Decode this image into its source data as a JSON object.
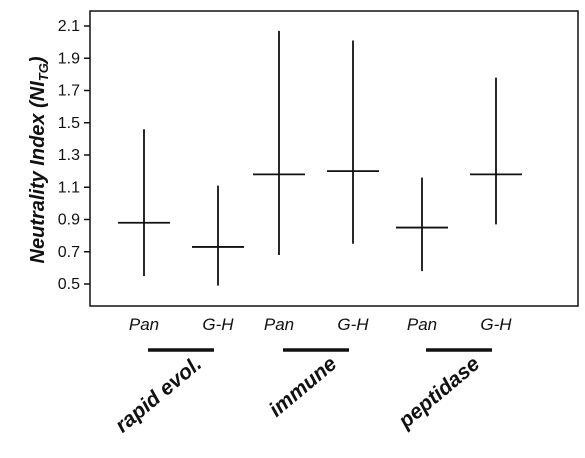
{
  "chart_data": {
    "type": "errorbar",
    "title": "",
    "ylabel": "Neutrality Index (NI",
    "ylabel_subscript": "TG",
    "ylabel_close": ")",
    "ylim": [
      0.4,
      2.15
    ],
    "yticks": [
      "0.5",
      "0.7",
      "0.9",
      "1.1",
      "1.3",
      "1.5",
      "1.7",
      "1.9",
      "2.1"
    ],
    "grid": false,
    "groups": [
      {
        "label": "rapid evol.",
        "items": [
          {
            "label": "Pan",
            "value": 0.88,
            "low": 0.55,
            "high": 1.46
          },
          {
            "label": "G-H",
            "value": 0.73,
            "low": 0.49,
            "high": 1.11
          }
        ]
      },
      {
        "label": "immune",
        "items": [
          {
            "label": "Pan",
            "value": 1.18,
            "low": 0.68,
            "high": 2.07
          },
          {
            "label": "G-H",
            "value": 1.2,
            "low": 0.75,
            "high": 2.01
          }
        ]
      },
      {
        "label": "peptidase",
        "items": [
          {
            "label": "Pan",
            "value": 0.85,
            "low": 0.58,
            "high": 1.16
          },
          {
            "label": "G-H",
            "value": 1.18,
            "low": 0.87,
            "high": 1.78
          }
        ]
      }
    ]
  }
}
